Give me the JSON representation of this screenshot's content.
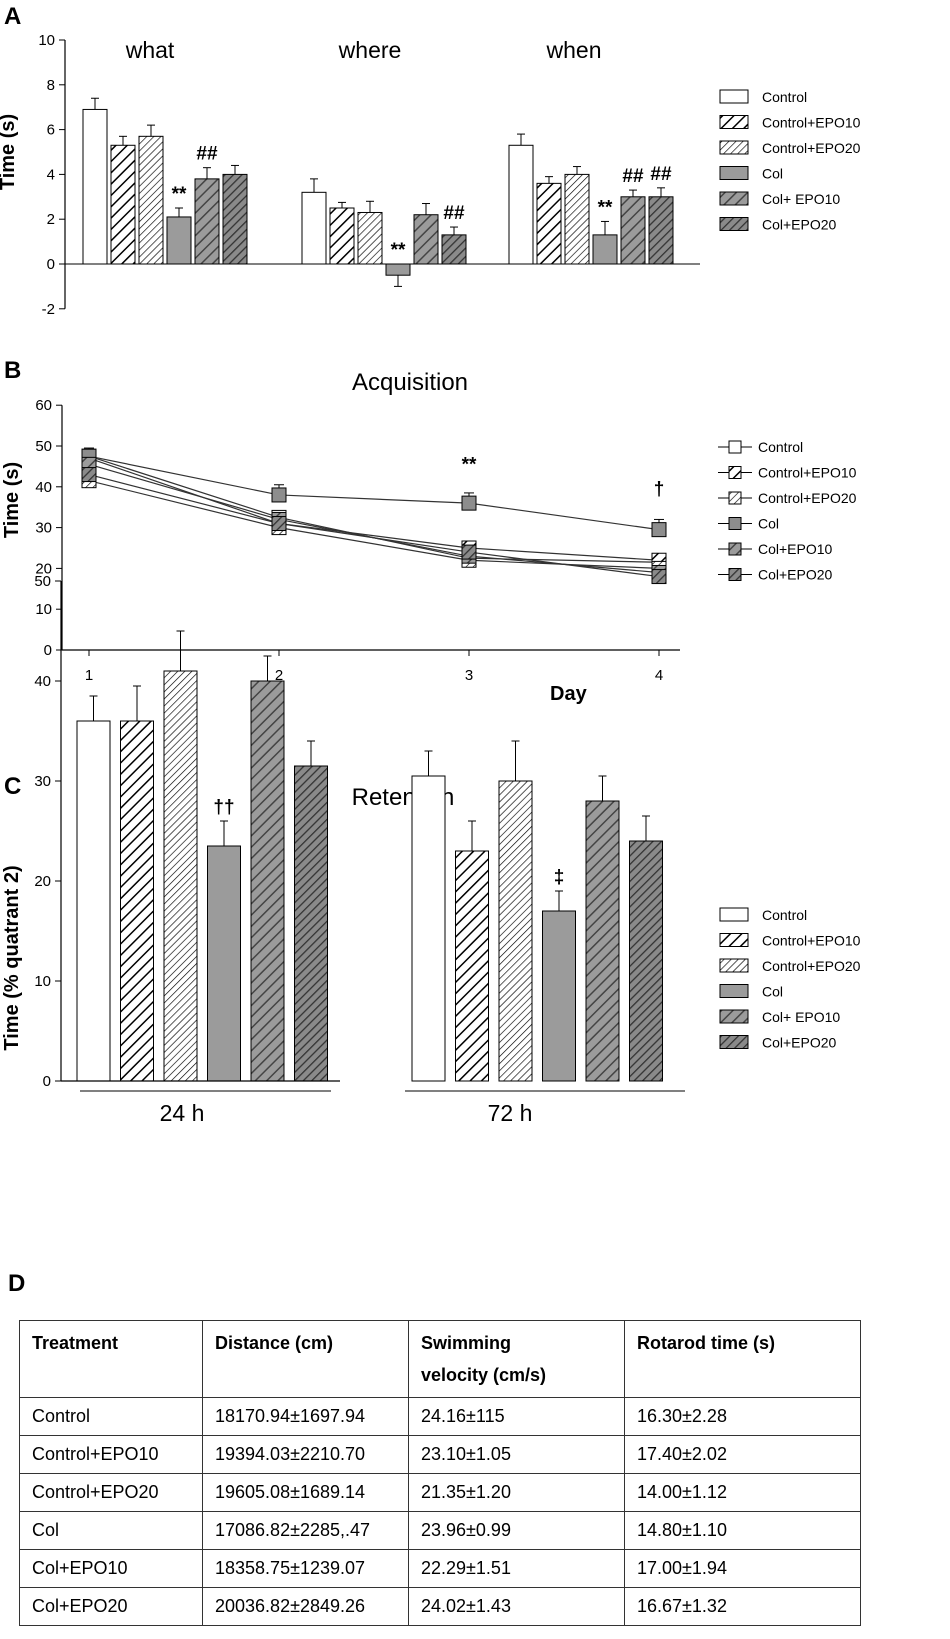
{
  "panels": {
    "A": {
      "letter": "A",
      "chart_data": {
        "type": "bar",
        "ylabel": "Time (s)",
        "ylim": [
          -2,
          10
        ],
        "yticks": [
          "10",
          "8",
          "6",
          "4",
          "2",
          "0",
          "-2"
        ],
        "categories": [
          "what",
          "where",
          "when"
        ],
        "series": [
          {
            "name": "Control",
            "values": [
              6.9,
              3.2,
              5.3
            ],
            "errors": [
              0.5,
              0.6,
              0.5
            ]
          },
          {
            "name": "Control+EPO10",
            "values": [
              5.3,
              2.5,
              3.6
            ],
            "errors": [
              0.4,
              0.25,
              0.3
            ]
          },
          {
            "name": "Control+EPO20",
            "values": [
              5.7,
              2.3,
              4.0
            ],
            "errors": [
              0.5,
              0.5,
              0.35
            ]
          },
          {
            "name": "Col",
            "values": [
              2.1,
              -0.5,
              1.3
            ],
            "errors": [
              0.4,
              0.5,
              0.6
            ]
          },
          {
            "name": "Col+ EPO10",
            "values": [
              3.8,
              2.2,
              3.0
            ],
            "errors": [
              0.5,
              0.5,
              0.3
            ]
          },
          {
            "name": "Col+EPO20",
            "values": [
              4.0,
              1.3,
              3.0
            ],
            "errors": [
              0.4,
              0.35,
              0.4
            ]
          }
        ],
        "annotations": [
          {
            "group": 0,
            "bar": 3,
            "text": "**"
          },
          {
            "group": 0,
            "bar": 4,
            "text": "##"
          },
          {
            "group": 1,
            "bar": 3,
            "text": "**"
          },
          {
            "group": 1,
            "bar": 5,
            "text": "##"
          },
          {
            "group": 2,
            "bar": 3,
            "text": "**"
          },
          {
            "group": 2,
            "bar": 4,
            "text": "##"
          },
          {
            "group": 2,
            "bar": 5,
            "text": "##"
          }
        ],
        "legend": [
          "Control",
          "Control+EPO10",
          "Control+EPO20",
          "Col",
          "Col+ EPO10",
          "Col+EPO20"
        ]
      }
    },
    "B": {
      "letter": "B",
      "chart_data": {
        "type": "line",
        "title": "Acquisition",
        "xlabel": "Day",
        "ylabel": "Time (s)",
        "ylim": [
          0,
          60
        ],
        "yticks": [
          "60",
          "50",
          "40",
          "30",
          "20",
          "10",
          "0"
        ],
        "x": [
          1,
          2,
          3,
          4
        ],
        "xticks": [
          "1",
          "2",
          "3",
          "4"
        ],
        "series": [
          {
            "name": "Control",
            "values": [
              47.5,
              32.5,
              22.5,
              21.5
            ]
          },
          {
            "name": "Control+EPO10",
            "values": [
              47,
              31,
              25,
              22
            ]
          },
          {
            "name": "Control+EPO20",
            "values": [
              41.5,
              30,
              22,
              20
            ]
          },
          {
            "name": "Col",
            "values": [
              47.5,
              38,
              36,
              29.5
            ],
            "errors": [
              2,
              2.5,
              2.5,
              2.5
            ]
          },
          {
            "name": "Col+EPO10",
            "values": [
              45.5,
              32,
              23,
              19
            ]
          },
          {
            "name": "Col+EPO20",
            "values": [
              43,
              31,
              24,
              18
            ]
          }
        ],
        "annotations": [
          {
            "x": 3,
            "y": 44,
            "text": "**"
          },
          {
            "x": 4,
            "y": 38,
            "text": "†"
          }
        ],
        "legend": [
          "Control",
          "Control+EPO10",
          "Control+EPO20",
          "Col",
          "Col+EPO10",
          "Col+EPO20"
        ]
      }
    },
    "C": {
      "letter": "C",
      "chart_data": {
        "type": "bar",
        "title": "Retention",
        "ylabel": "Time (% quatrant 2)",
        "ylim": [
          0,
          50
        ],
        "yticks": [
          "50",
          "40",
          "30",
          "20",
          "10",
          "0"
        ],
        "categories": [
          "24 h",
          "72 h"
        ],
        "series": [
          {
            "name": "Control",
            "values": [
              36,
              30.5
            ],
            "errors": [
              2.5,
              2.5
            ]
          },
          {
            "name": "Control+EPO10",
            "values": [
              36,
              23
            ],
            "errors": [
              3.5,
              3
            ]
          },
          {
            "name": "Control+EPO20",
            "values": [
              41,
              30
            ],
            "errors": [
              4,
              4
            ]
          },
          {
            "name": "Col",
            "values": [
              23.5,
              17
            ],
            "errors": [
              2.5,
              2
            ]
          },
          {
            "name": "Col+ EPO10",
            "values": [
              40,
              28
            ],
            "errors": [
              2.5,
              2.5
            ]
          },
          {
            "name": "Col+EPO20",
            "values": [
              31.5,
              24
            ],
            "errors": [
              2.5,
              2.5
            ]
          }
        ],
        "annotations": [
          {
            "group": 0,
            "bar": 3,
            "text": "††"
          },
          {
            "group": 1,
            "bar": 3,
            "text": "‡"
          }
        ],
        "legend": [
          "Control",
          "Control+EPO10",
          "Control+EPO20",
          "Col",
          "Col+ EPO10",
          "Col+EPO20"
        ]
      }
    },
    "D": {
      "letter": "D",
      "chart_data": {
        "type": "table",
        "headers": [
          "Treatment",
          "Distance (cm)",
          "Swimming velocity (cm/s)",
          "Rotarod time (s)"
        ],
        "header_lines": [
          [
            "Treatment"
          ],
          [
            "Distance (cm)"
          ],
          [
            "Swimming",
            "velocity (cm/s)"
          ],
          [
            "Rotarod time (s)"
          ]
        ],
        "rows": [
          [
            "Control",
            "18170.94±1697.94",
            "24.16±115",
            "16.30±2.28"
          ],
          [
            "Control+EPO10",
            "19394.03±2210.70",
            "23.10±1.05",
            "17.40±2.02"
          ],
          [
            "Control+EPO20",
            "19605.08±1689.14",
            "21.35±1.20",
            "14.00±1.12"
          ],
          [
            "Col",
            "17086.82±2285,.47",
            "23.96±0.99",
            "14.80±1.10"
          ],
          [
            "Col+EPO10",
            "18358.75±1239.07",
            "22.29±1.51",
            "17.00±1.94"
          ],
          [
            "Col+EPO20",
            "20036.82±2849.26",
            "24.02±1.43",
            "16.67±1.32"
          ]
        ]
      }
    }
  },
  "colors": {
    "control": "#ffffff",
    "col": "#9b9b9b",
    "col_dark": "#6f6f6f",
    "stroke": "#000000"
  }
}
